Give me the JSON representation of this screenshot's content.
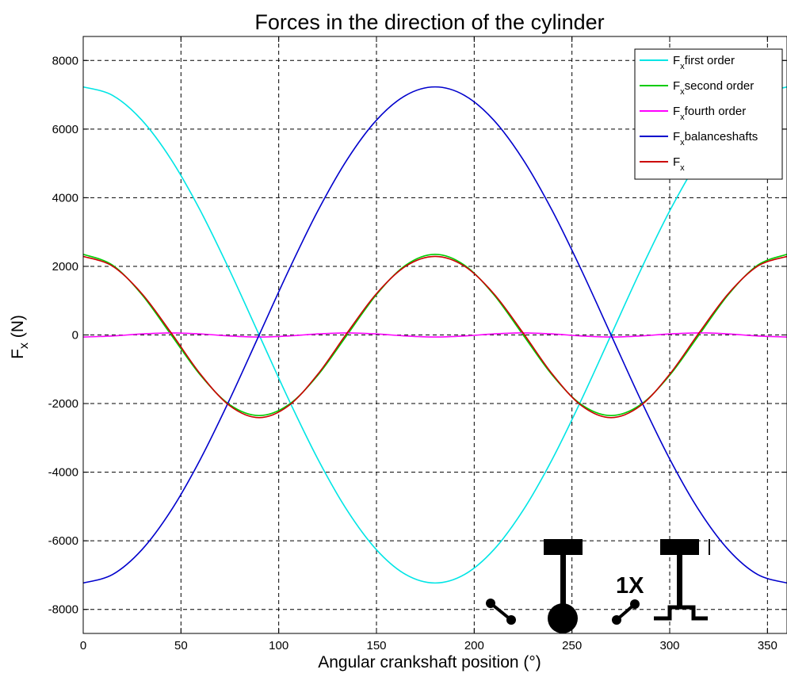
{
  "chart_data": {
    "type": "line",
    "title": "Forces in the direction of the cylinder",
    "xlabel": "Angular crankshaft position (°)",
    "ylabel": {
      "main": "F",
      "sub": "x",
      "unit": " (N)"
    },
    "xlim": [
      0,
      360
    ],
    "ylim": [
      -8700,
      8700
    ],
    "xticks": [
      0,
      50,
      100,
      150,
      200,
      250,
      300,
      350
    ],
    "yticks": [
      -8000,
      -6000,
      -4000,
      -2000,
      0,
      2000,
      4000,
      6000,
      8000
    ],
    "grid": true,
    "legend_position": "top-right",
    "x": [
      0,
      15,
      30,
      45,
      60,
      75,
      90,
      105,
      120,
      135,
      150,
      165,
      180,
      195,
      210,
      225,
      240,
      255,
      270,
      285,
      300,
      315,
      330,
      345,
      360
    ],
    "series": [
      {
        "name": "first order",
        "legend": {
          "main": "F",
          "sub": "x",
          "text": "first order"
        },
        "color": "#00e5e5",
        "values": [
          7230,
          6984,
          6261,
          5112,
          3615,
          1871,
          0,
          -1871,
          -3615,
          -5112,
          -6261,
          -6984,
          -7230,
          -6984,
          -6261,
          -5112,
          -3615,
          -1871,
          0,
          1871,
          3615,
          5112,
          6261,
          6984,
          7230
        ]
      },
      {
        "name": "second order",
        "legend": {
          "main": "F",
          "sub": "x",
          "text": "second order"
        },
        "color": "#00cc00",
        "values": [
          2350,
          2035,
          1175,
          0,
          -1175,
          -2035,
          -2350,
          -2035,
          -1175,
          0,
          1175,
          2035,
          2350,
          2035,
          1175,
          0,
          -1175,
          -2035,
          -2350,
          -2035,
          -1175,
          0,
          1175,
          2035,
          2350
        ]
      },
      {
        "name": "fourth order",
        "legend": {
          "main": "F",
          "sub": "x",
          "text": "fourth order"
        },
        "color": "#ff00ff",
        "values": [
          -60,
          -30,
          30,
          60,
          30,
          -30,
          -60,
          -30,
          30,
          60,
          30,
          -30,
          -60,
          -30,
          30,
          60,
          30,
          -30,
          -60,
          -30,
          30,
          60,
          30,
          -30,
          -60
        ]
      },
      {
        "name": "balanceshafts",
        "legend": {
          "main": "F",
          "sub": "x",
          "text": "balanceshafts"
        },
        "color": "#0000cc",
        "values": [
          -7230,
          -6984,
          -6261,
          -5112,
          -3615,
          -1871,
          0,
          1871,
          3615,
          5112,
          6261,
          6984,
          7230,
          6984,
          6261,
          5112,
          3615,
          1871,
          0,
          -1871,
          -3615,
          -5112,
          -6261,
          -6984,
          -7230
        ]
      },
      {
        "name": "F_x",
        "legend": {
          "main": "F",
          "sub": "x",
          "text": ""
        },
        "color": "#cc0000",
        "values": [
          2290,
          2005,
          1205,
          60,
          -1145,
          -2065,
          -2410,
          -2065,
          -1145,
          60,
          1205,
          2005,
          2290,
          2005,
          1205,
          60,
          -1145,
          -2065,
          -2410,
          -2065,
          -1145,
          60,
          1205,
          2005,
          2290
        ]
      }
    ],
    "annotation": {
      "label": "1X"
    }
  }
}
